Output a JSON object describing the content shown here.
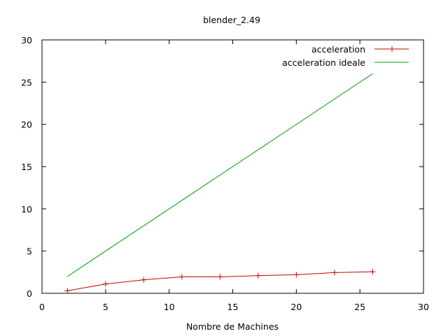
{
  "chart_data": {
    "type": "line",
    "title": "blender_2.49",
    "xlabel": "Nombre de Machines",
    "ylabel": "",
    "xlim": [
      0,
      30
    ],
    "ylim": [
      0,
      30
    ],
    "xticks": [
      0,
      5,
      10,
      15,
      20,
      25,
      30
    ],
    "yticks": [
      0,
      5,
      10,
      15,
      20,
      25,
      30
    ],
    "grid": false,
    "legend_position": "top-right",
    "series": [
      {
        "name": "acceleration",
        "color": "#cc0000",
        "marker": "plus",
        "x": [
          2,
          5,
          8,
          11,
          14,
          17,
          20,
          23,
          26
        ],
        "y": [
          0.3,
          1.1,
          1.6,
          1.95,
          1.95,
          2.1,
          2.2,
          2.45,
          2.55
        ]
      },
      {
        "name": "acceleration ideale",
        "color": "#00a000",
        "marker": "none",
        "x": [
          2,
          26
        ],
        "y": [
          2,
          26
        ]
      }
    ]
  }
}
